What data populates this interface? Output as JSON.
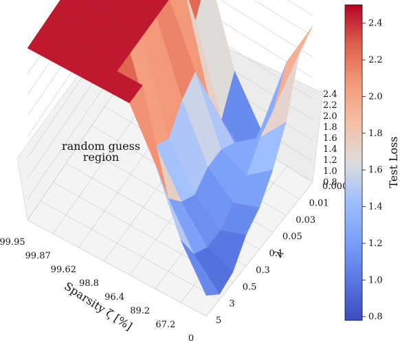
{
  "chart_data": {
    "type": "surface",
    "title": "",
    "xlabel": "Sparsity ζ [%]",
    "ylabel": "λ",
    "zlabel": "",
    "x_ticks": [
      "99.95",
      "99.87",
      "99.62",
      "98.8",
      "96.4",
      "89.2",
      "67.2",
      "0"
    ],
    "y_ticks": [
      "0.0001",
      "0.01",
      "0.03",
      "0.05",
      "0.1",
      "0.3",
      "0.5",
      "3",
      "5"
    ],
    "z_ticks": [
      "0.8",
      "1.0",
      "1.2",
      "1.4",
      "1.6",
      "1.8",
      "2.0",
      "2.2",
      "2.4"
    ],
    "zlim": [
      0.8,
      2.45
    ],
    "colormap": "coolwarm",
    "colorbar": {
      "label": "Test Loss",
      "ticks": [
        "0.8",
        "1.0",
        "1.2",
        "1.4",
        "1.6",
        "1.8",
        "2.0",
        "2.2",
        "2.4"
      ],
      "range": [
        0.78,
        2.5
      ]
    },
    "annotation": [
      "random guess",
      "region"
    ],
    "surface": [
      [
        2.45,
        2.45,
        2.45,
        2.45,
        2.45,
        2.45,
        2.45,
        2.45,
        2.45
      ],
      [
        2.45,
        2.45,
        2.45,
        2.45,
        2.45,
        2.45,
        2.45,
        2.45,
        2.45
      ],
      [
        2.45,
        2.45,
        2.45,
        2.45,
        2.45,
        2.45,
        2.45,
        2.45,
        2.45
      ],
      [
        2.2,
        1.9,
        2.45,
        2.45,
        2.45,
        2.45,
        2.45,
        2.45,
        2.45
      ],
      [
        1.4,
        1.1,
        1.5,
        1.9,
        1.8,
        1.6,
        1.7,
        2.45,
        2.45
      ],
      [
        1.0,
        0.9,
        1.2,
        1.3,
        1.3,
        1.2,
        1.3,
        1.5,
        2.0
      ],
      [
        1.8,
        1.5,
        1.4,
        1.2,
        1.1,
        1.0,
        1.0,
        1.1,
        1.4
      ],
      [
        2.3,
        2.2,
        1.7,
        1.4,
        1.2,
        1.1,
        0.9,
        0.85,
        1.0
      ]
    ]
  }
}
